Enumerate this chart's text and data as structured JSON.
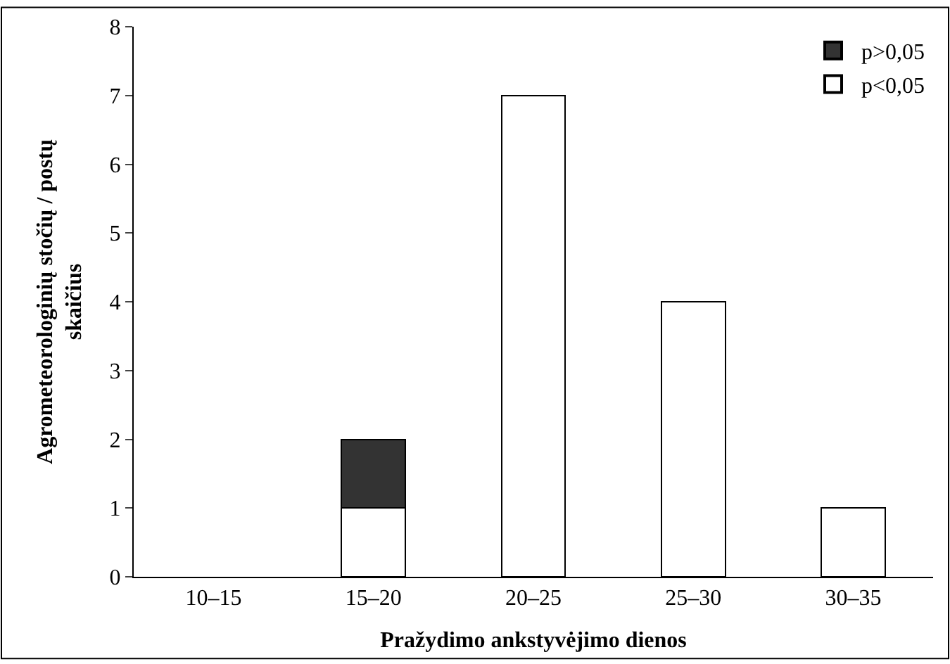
{
  "chart_data": {
    "type": "bar",
    "stacked": true,
    "xlabel": "Pražydimo ankstyvėjimo dienos",
    "ylabel": "Agrometeorologinių stočių / postų skaičius",
    "categories": [
      "10–15",
      "15–20",
      "20–25",
      "25–30",
      "30–35"
    ],
    "series": [
      {
        "name": "p<0,05",
        "color": "#ffffff",
        "values": [
          0,
          1,
          7,
          4,
          1
        ]
      },
      {
        "name": "p>0,05",
        "color": "#333333",
        "values": [
          0,
          1,
          0,
          0,
          0
        ]
      }
    ],
    "ylim": [
      0,
      8
    ],
    "yticks": [
      0,
      1,
      2,
      3,
      4,
      5,
      6,
      7,
      8
    ],
    "legend": "top right"
  }
}
